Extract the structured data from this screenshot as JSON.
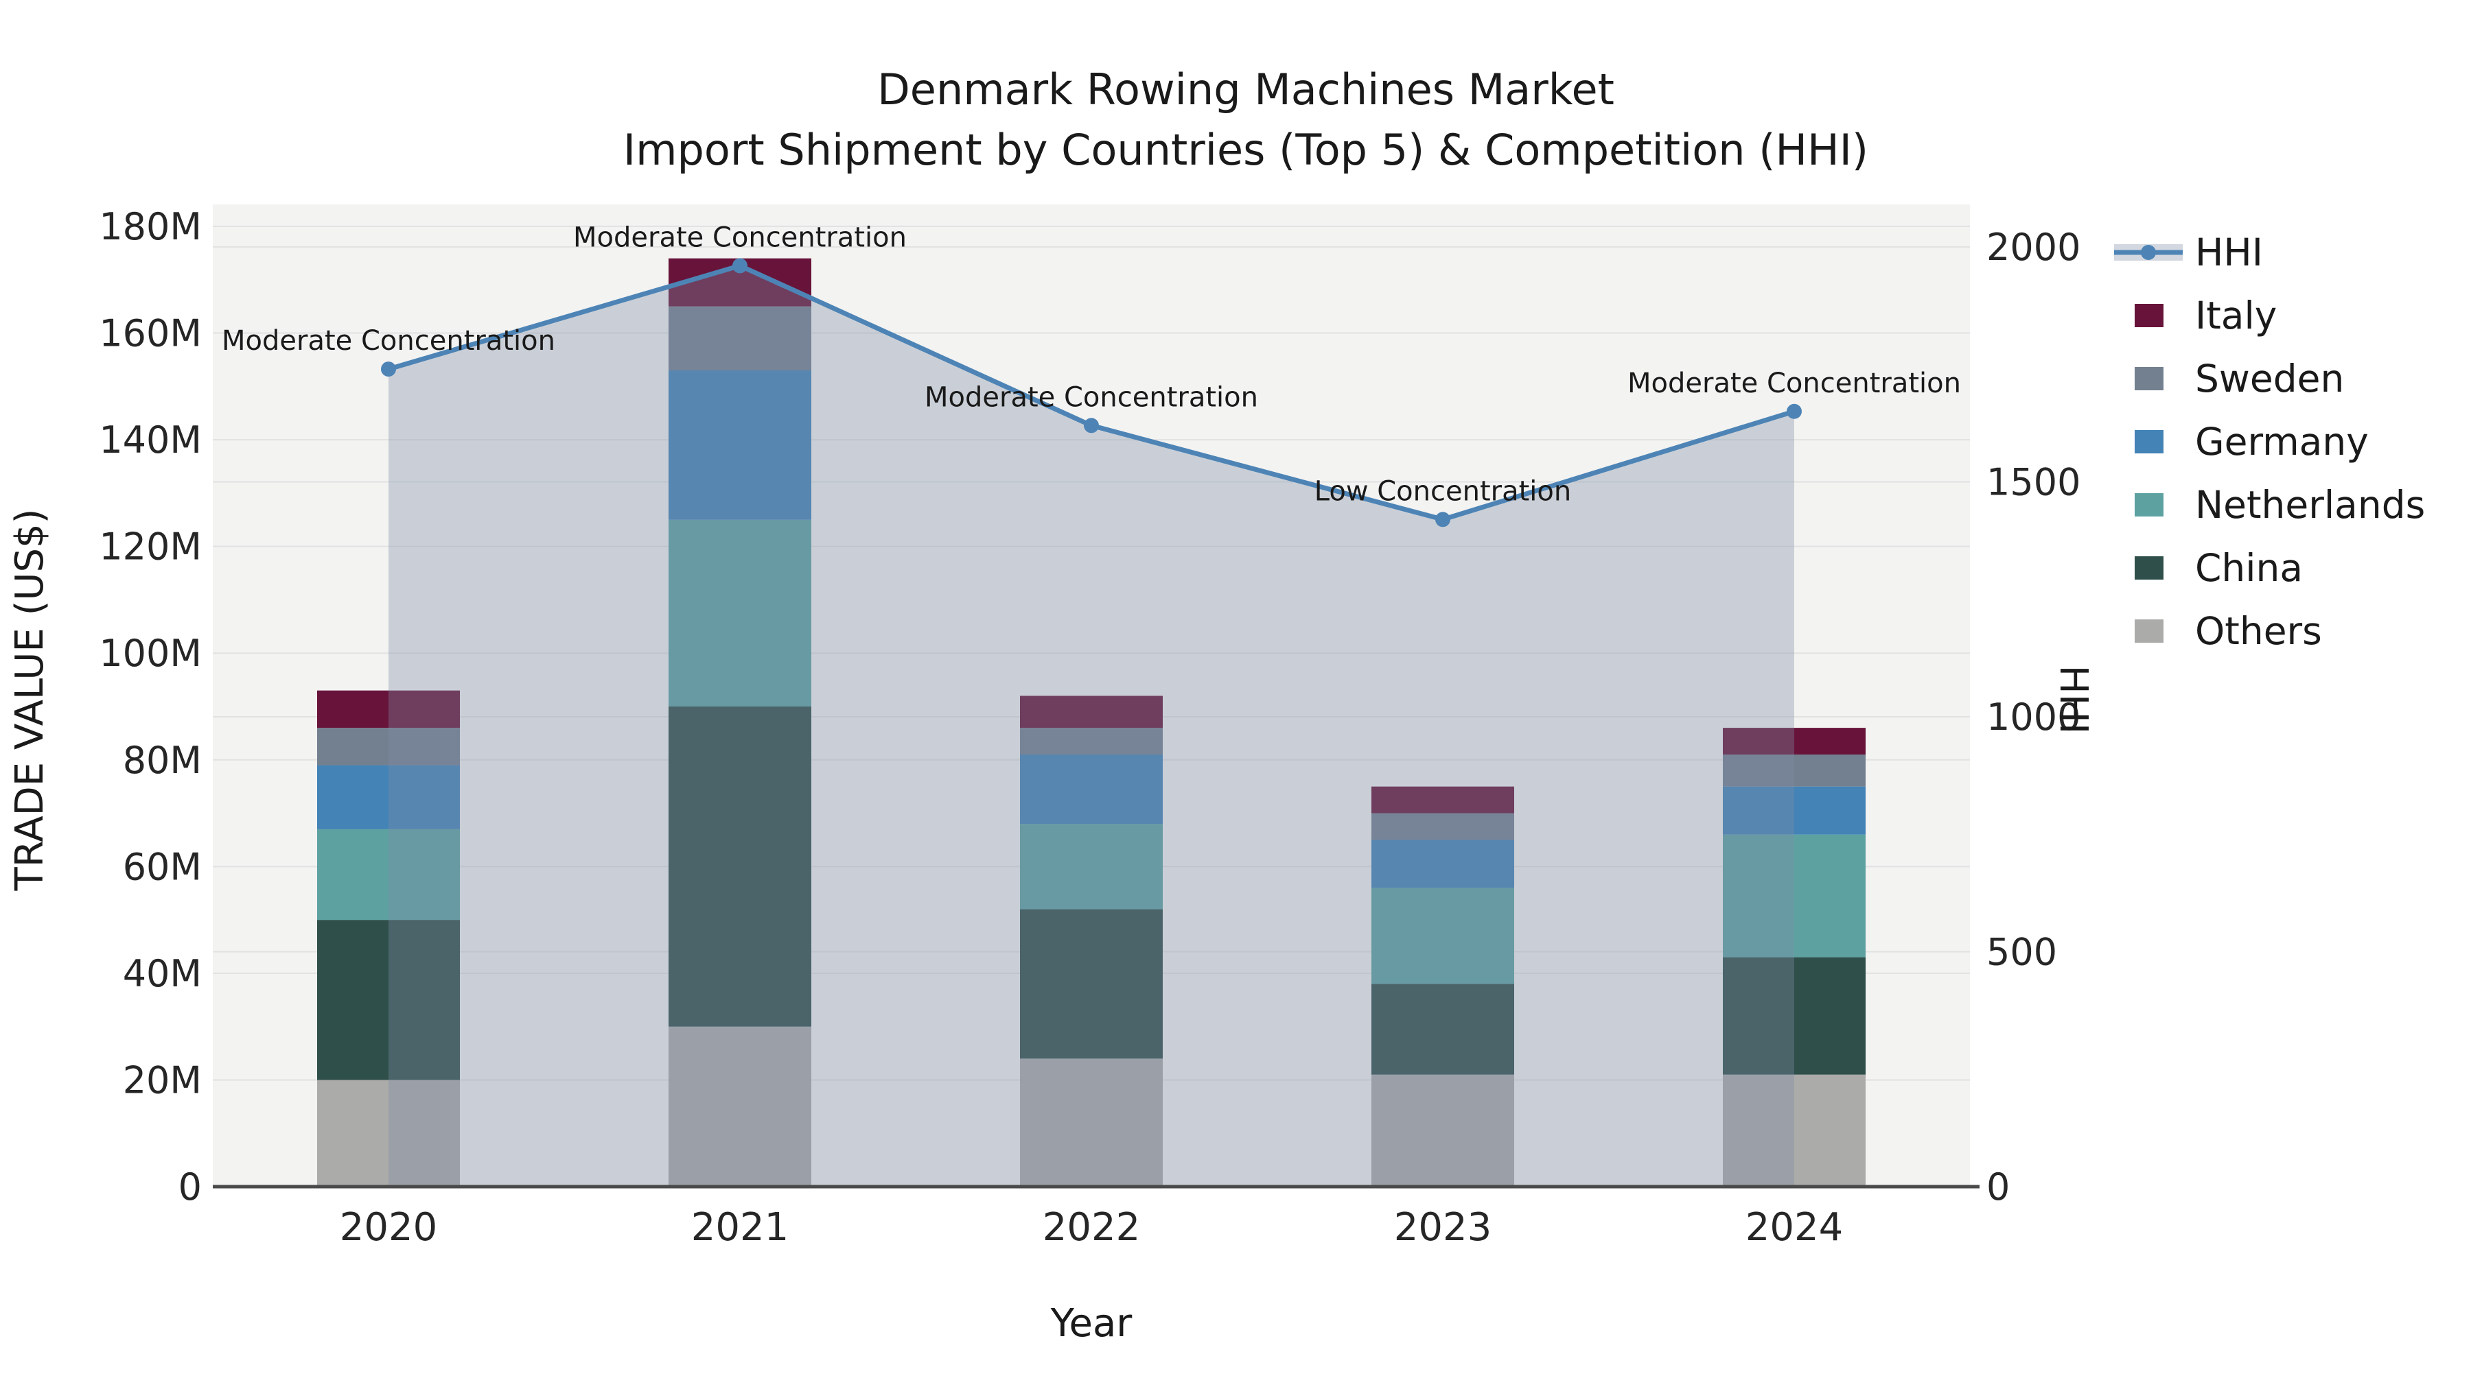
{
  "title": {
    "line1": "Denmark Rowing Machines Market",
    "line2": "Import Shipment by Countries (Top 5) & Competition (HHI)"
  },
  "colors": {
    "hhi_line": "#4d84b5",
    "hhi_area_fill": "rgba(125,140,165,0.35)",
    "italy": "#68143a",
    "sweden": "#73808f",
    "germany": "#4383b6",
    "netherlands": "#5da1a1",
    "china": "#2f4f4a",
    "others": "#ababa9",
    "plot_background": "#f3f3f2",
    "gridline": "#e2e2e2",
    "axis_line": "#4a4a4a",
    "text": "#1a1a1a"
  },
  "legend": {
    "items": [
      {
        "label": "HHI",
        "type": "line",
        "color": "#4d84b5"
      },
      {
        "label": "Italy",
        "type": "patch",
        "color": "#68143a"
      },
      {
        "label": "Sweden",
        "type": "patch",
        "color": "#73808f"
      },
      {
        "label": "Germany",
        "type": "patch",
        "color": "#4383b6"
      },
      {
        "label": "Netherlands",
        "type": "patch",
        "color": "#5da1a1"
      },
      {
        "label": "China",
        "type": "patch",
        "color": "#2f4f4a"
      },
      {
        "label": "Others",
        "type": "patch",
        "color": "#ababa9"
      }
    ]
  },
  "chart_data": {
    "type": "combo_stacked_bar_plus_line",
    "title": "Denmark Rowing Machines Market — Import Shipment by Countries (Top 5) & Competition (HHI)",
    "categories": [
      "2020",
      "2021",
      "2022",
      "2023",
      "2024"
    ],
    "bar_unit": "USD millions (trade value)",
    "bar_stack_order": "bottom to top",
    "bar_series": [
      {
        "name": "Others",
        "color": "#ababa9",
        "values": [
          20,
          30,
          24,
          21,
          21
        ]
      },
      {
        "name": "China",
        "color": "#2f4f4a",
        "values": [
          30,
          60,
          28,
          17,
          22
        ]
      },
      {
        "name": "Netherlands",
        "color": "#5da1a1",
        "values": [
          17,
          35,
          16,
          18,
          23
        ]
      },
      {
        "name": "Germany",
        "color": "#4383b6",
        "values": [
          12,
          28,
          13,
          9,
          9
        ]
      },
      {
        "name": "Sweden",
        "color": "#73808f",
        "values": [
          7,
          12,
          5,
          5,
          6
        ]
      },
      {
        "name": "Italy",
        "color": "#68143a",
        "values": [
          7,
          9,
          6,
          5,
          5
        ]
      }
    ],
    "line_series": {
      "name": "HHI",
      "color": "#4d84b5",
      "values": [
        1740,
        1960,
        1620,
        1420,
        1650
      ],
      "area_fill": "rgba(125,140,165,0.35)",
      "marker": "circle"
    },
    "annotations": [
      {
        "category": "2020",
        "text": "Moderate Concentration"
      },
      {
        "category": "2021",
        "text": "Moderate Concentration"
      },
      {
        "category": "2022",
        "text": "Moderate Concentration"
      },
      {
        "category": "2023",
        "text": "Low Concentration"
      },
      {
        "category": "2024",
        "text": "Moderate Concentration"
      }
    ],
    "x_axis": {
      "label": "Year",
      "tick_labels": [
        "2020",
        "2021",
        "2022",
        "2023",
        "2024"
      ]
    },
    "y_left_axis": {
      "label": "TRADE VALUE (US$)",
      "min": 0,
      "max": 180000000,
      "tick_step": 20000000,
      "tick_labels": [
        "0",
        "20M",
        "40M",
        "60M",
        "80M",
        "100M",
        "120M",
        "140M",
        "160M",
        "180M"
      ]
    },
    "y_right_axis": {
      "label": "HHI",
      "min": 0,
      "max": 2000,
      "tick_step": 500,
      "tick_labels": [
        "0",
        "500",
        "1000",
        "1500",
        "2000"
      ]
    },
    "grid": true,
    "legend_position": "right-outside"
  }
}
